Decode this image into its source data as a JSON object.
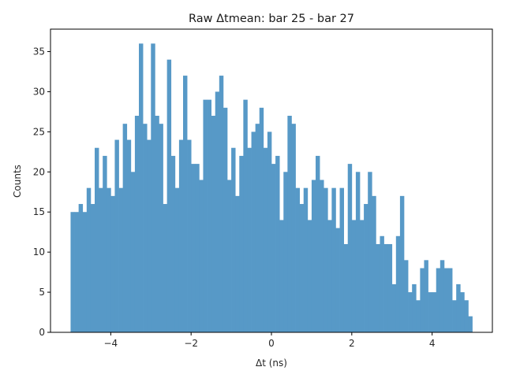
{
  "chart_data": {
    "type": "bar",
    "title": "Raw Δtmean: bar 25 - bar 27",
    "xlabel": "Δt (ns)",
    "ylabel": "Counts",
    "xlim": [
      -5.5,
      5.5
    ],
    "ylim": [
      0,
      37.8
    ],
    "xticks": [
      -4,
      -2,
      0,
      2,
      4
    ],
    "yticks": [
      0,
      5,
      10,
      15,
      20,
      25,
      30,
      35
    ],
    "bin_start": -5,
    "bin_end": 5,
    "bar_color": "#5799c7",
    "grid": false,
    "legend": "none",
    "values": [
      15,
      15,
      16,
      15,
      18,
      16,
      23,
      18,
      22,
      18,
      17,
      24,
      18,
      26,
      24,
      20,
      27,
      36,
      26,
      24,
      36,
      27,
      26,
      16,
      34,
      22,
      18,
      24,
      32,
      24,
      21,
      21,
      19,
      29,
      29,
      27,
      30,
      32,
      28,
      19,
      23,
      17,
      22,
      29,
      23,
      25,
      26,
      28,
      23,
      25,
      21,
      22,
      14,
      20,
      27,
      26,
      18,
      16,
      18,
      14,
      19,
      22,
      19,
      18,
      14,
      18,
      13,
      18,
      11,
      21,
      14,
      20,
      14,
      16,
      20,
      17,
      11,
      12,
      11,
      11,
      6,
      12,
      17,
      9,
      5,
      6,
      4,
      8,
      9,
      5,
      5,
      8,
      9,
      8,
      8,
      4,
      6,
      5,
      4,
      2
    ]
  }
}
